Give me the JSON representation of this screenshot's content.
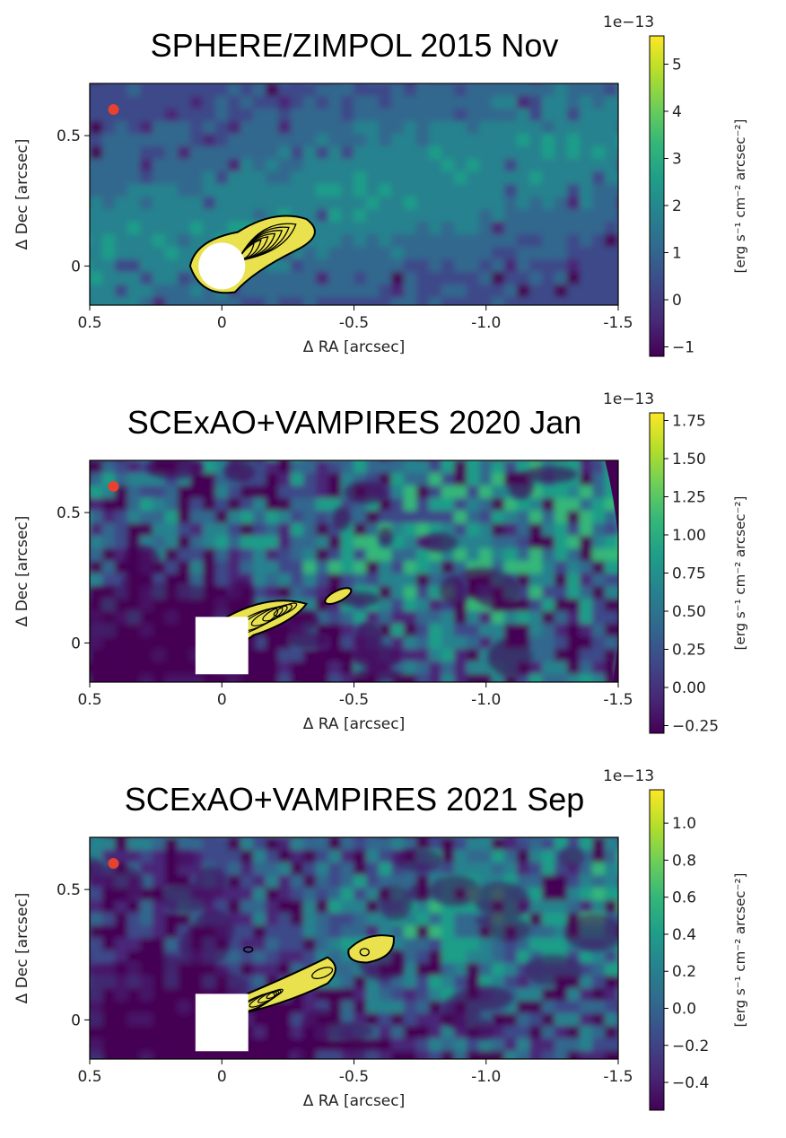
{
  "chart_data": [
    {
      "type": "heatmap",
      "title": "SPHERE/ZIMPOL 2015 Nov",
      "xlabel": "Δ RA [arcsec]",
      "ylabel": "Δ Dec [arcsec]",
      "xlim": [
        0.5,
        -1.5
      ],
      "ylim": [
        -0.15,
        0.7
      ],
      "xticks": [
        0.5,
        0,
        -0.5,
        -1.0,
        -1.5
      ],
      "xtick_labels": [
        "0.5",
        "0",
        "-0.5",
        "-1.0",
        "-1.5"
      ],
      "yticks": [
        0,
        0.5
      ],
      "ytick_labels": [
        "0",
        "0.5"
      ],
      "colorbar": {
        "label": "[erg s⁻¹ cm⁻² arcsec⁻²]",
        "scale_text": "1e−13",
        "range": [
          -1.2,
          5.6
        ],
        "ticks": [
          -1,
          0,
          1,
          2,
          3,
          4,
          5
        ],
        "tick_labels": [
          "−1",
          "0",
          "1",
          "2",
          "3",
          "4",
          "5"
        ],
        "colormap": "viridis"
      },
      "mask": "circle",
      "marker": {
        "x": 0.41,
        "y": 0.6,
        "color": "#e8412f"
      }
    },
    {
      "type": "heatmap",
      "title": "SCExAO+VAMPIRES 2020 Jan",
      "xlabel": "Δ RA [arcsec]",
      "ylabel": "Δ Dec [arcsec]",
      "xlim": [
        0.5,
        -1.5
      ],
      "ylim": [
        -0.15,
        0.7
      ],
      "xticks": [
        0.5,
        0,
        -0.5,
        -1.0,
        -1.5
      ],
      "xtick_labels": [
        "0.5",
        "0",
        "-0.5",
        "-1.0",
        "-1.5"
      ],
      "yticks": [
        0,
        0.5
      ],
      "ytick_labels": [
        "0",
        "0.5"
      ],
      "colorbar": {
        "label": "[erg s⁻¹ cm⁻² arcsec⁻²]",
        "scale_text": "1e−13",
        "range": [
          -0.3,
          1.8
        ],
        "ticks": [
          -0.25,
          0,
          0.25,
          0.5,
          0.75,
          1.0,
          1.25,
          1.5,
          1.75
        ],
        "tick_labels": [
          "−0.25",
          "0.00",
          "0.25",
          "0.50",
          "0.75",
          "1.00",
          "1.25",
          "1.50",
          "1.75"
        ],
        "colormap": "viridis"
      },
      "mask": "square",
      "marker": {
        "x": 0.41,
        "y": 0.6,
        "color": "#e8412f"
      }
    },
    {
      "type": "heatmap",
      "title": "SCExAO+VAMPIRES 2021 Sep",
      "xlabel": "Δ RA [arcsec]",
      "ylabel": "Δ Dec [arcsec]",
      "xlim": [
        0.5,
        -1.5
      ],
      "ylim": [
        -0.15,
        0.7
      ],
      "xticks": [
        0.5,
        0,
        -0.5,
        -1.0,
        -1.5
      ],
      "xtick_labels": [
        "0.5",
        "0",
        "-0.5",
        "-1.0",
        "-1.5"
      ],
      "yticks": [
        0,
        0.5
      ],
      "ytick_labels": [
        "0",
        "0.5"
      ],
      "colorbar": {
        "label": "[erg s⁻¹ cm⁻² arcsec⁻²]",
        "scale_text": "1e−13",
        "range": [
          -0.55,
          1.18
        ],
        "ticks": [
          -0.4,
          -0.2,
          0.0,
          0.2,
          0.4,
          0.6,
          0.8,
          1.0
        ],
        "tick_labels": [
          "−0.4",
          "−0.2",
          "0.0",
          "0.2",
          "0.4",
          "0.6",
          "0.8",
          "1.0"
        ],
        "colormap": "viridis"
      },
      "mask": "square",
      "marker": {
        "x": 0.41,
        "y": 0.6,
        "color": "#e8412f"
      }
    }
  ]
}
